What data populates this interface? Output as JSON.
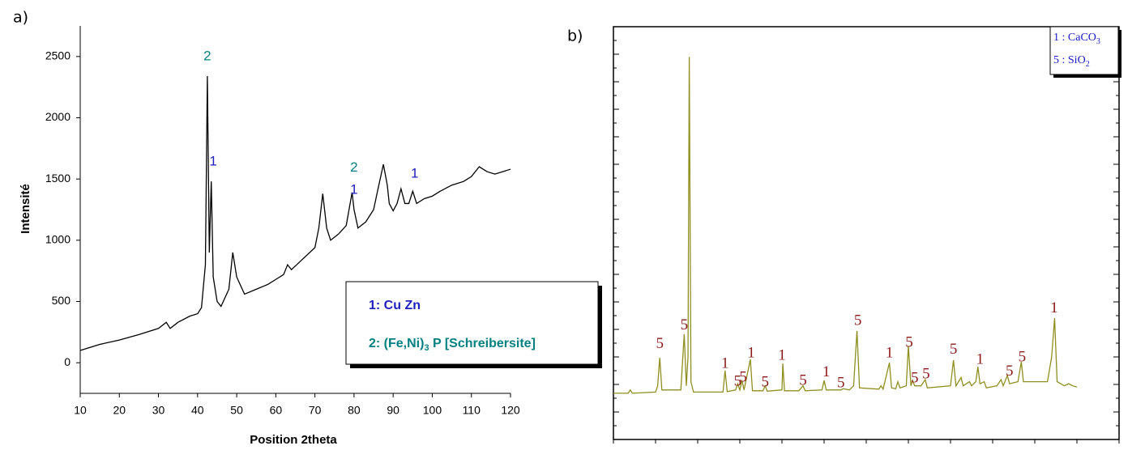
{
  "chart_data": [
    {
      "type": "line",
      "panel_label": "a)",
      "xlabel": "Position 2theta",
      "ylabel": "Intensité",
      "xlim": [
        10,
        120
      ],
      "ylim": [
        -250,
        2750
      ],
      "xticks": [
        10,
        20,
        30,
        40,
        50,
        60,
        70,
        80,
        90,
        100,
        110,
        120
      ],
      "yticks": [
        0,
        500,
        1000,
        1500,
        2000,
        2500
      ],
      "x": [
        10,
        15,
        20,
        25,
        30,
        32,
        33,
        35,
        38,
        40,
        41,
        42,
        42.5,
        43,
        43.5,
        44,
        45,
        46,
        48,
        49,
        50,
        52,
        55,
        58,
        60,
        62,
        63,
        64,
        66,
        68,
        70,
        71,
        72,
        73,
        74,
        76,
        78,
        79,
        79.5,
        80,
        81,
        83,
        85,
        86,
        87.5,
        88.5,
        89,
        90,
        91,
        92,
        93,
        94,
        95,
        96,
        98,
        100,
        102,
        105,
        108,
        110,
        112,
        114,
        116,
        118,
        120
      ],
      "series": [
        {
          "color": "#000000",
          "values": [
            100,
            150,
            185,
            230,
            280,
            330,
            280,
            330,
            380,
            400,
            450,
            800,
            2340,
            900,
            1480,
            700,
            500,
            460,
            600,
            900,
            700,
            560,
            600,
            640,
            680,
            720,
            800,
            760,
            820,
            880,
            940,
            1100,
            1380,
            1100,
            1000,
            1050,
            1120,
            1300,
            1390,
            1250,
            1100,
            1150,
            1250,
            1400,
            1620,
            1450,
            1300,
            1240,
            1300,
            1420,
            1300,
            1300,
            1400,
            1300,
            1340,
            1360,
            1400,
            1450,
            1480,
            1520,
            1600,
            1560,
            1540,
            1560,
            1580
          ]
        }
      ],
      "annotations": [
        {
          "text": "2",
          "x": 42.5,
          "y": 2500,
          "color": "#008080"
        },
        {
          "text": "1",
          "x": 44,
          "y": 1640,
          "color": "#1f1fbf"
        },
        {
          "text": "2",
          "x": 80,
          "y": 1590,
          "color": "#008080"
        },
        {
          "text": "1",
          "x": 80,
          "y": 1410,
          "color": "#1f1fbf"
        },
        {
          "text": "1",
          "x": 95.5,
          "y": 1540,
          "color": "#1f1fbf"
        }
      ],
      "legend": [
        {
          "color": "#1f1fbf",
          "parts": [
            {
              "text": "1: Cu Zn"
            }
          ]
        },
        {
          "color": "#008080",
          "parts": [
            {
              "text": "2: (Fe,Ni)"
            },
            {
              "sub": "3"
            },
            {
              "text": " P [Schreibersite]"
            }
          ]
        }
      ]
    },
    {
      "type": "line",
      "panel_label": "b)",
      "xlim": [
        10,
        130
      ],
      "ylim": [
        0,
        100
      ],
      "xticks": [
        10,
        20,
        30,
        40,
        50,
        60,
        70,
        80,
        90,
        100,
        110,
        120,
        130
      ],
      "x": [
        10,
        13.5,
        14,
        14.5,
        20,
        20.5,
        21,
        21.5,
        26,
        26.8,
        27.3,
        27.7,
        28,
        28.4,
        29,
        36,
        36.5,
        37,
        39,
        39.5,
        40,
        40.5,
        41,
        42.5,
        43,
        45.5,
        46,
        46.5,
        50,
        50.2,
        50.6,
        54,
        55,
        55.5,
        59.5,
        60,
        60.5,
        64,
        64.5,
        66,
        67,
        67.8,
        68.4,
        73,
        73.5,
        74,
        75.5,
        76,
        77,
        77.5,
        78,
        79.5,
        80,
        80.6,
        81,
        81.5,
        83,
        84,
        84.5,
        90,
        90.7,
        91.3,
        92.5,
        93,
        94.5,
        95,
        96,
        96.5,
        97,
        98,
        98.5,
        101,
        102,
        102.5,
        103.5,
        104,
        106,
        106.8,
        107.3,
        113,
        114,
        114.7,
        115.3,
        117,
        118,
        119,
        120
      ],
      "series": [
        {
          "color": "#8f8f1f",
          "values": [
            11.2,
            11.2,
            12,
            11.2,
            11.5,
            13,
            19.8,
            12,
            12,
            25.5,
            13,
            20,
            92.7,
            14,
            11.5,
            11.5,
            16.7,
            11.6,
            12,
            13.5,
            12,
            14.3,
            12,
            19.4,
            11.8,
            11.8,
            13,
            11.7,
            12,
            18.4,
            11.8,
            11.8,
            13,
            11.8,
            12,
            14.3,
            12,
            12,
            12.3,
            12,
            13,
            26.3,
            12.5,
            12.2,
            13,
            12.2,
            18.6,
            12.5,
            12.3,
            14,
            12.5,
            13,
            22.7,
            13,
            14.3,
            13,
            13,
            14.5,
            12.5,
            13,
            19.2,
            13,
            15,
            13,
            14,
            13,
            14,
            17.6,
            13.5,
            14,
            12.5,
            13,
            14.5,
            13,
            15.5,
            13.5,
            14,
            18.8,
            14,
            14,
            20,
            29.4,
            14,
            13,
            13.5,
            13,
            12.7
          ]
        }
      ],
      "annotations": [
        {
          "text": "5",
          "x": 21,
          "y": 23,
          "color": "#8b1a1a"
        },
        {
          "text": "5",
          "x": 26.8,
          "y": 27.5,
          "color": "#8b1a1a"
        },
        {
          "text": "1",
          "x": 36.5,
          "y": 18.2,
          "color": "#8b1a1a"
        },
        {
          "text": "5",
          "x": 39.5,
          "y": 13.9,
          "color": "#8b1a1a"
        },
        {
          "text": "5",
          "x": 40.8,
          "y": 14.9,
          "color": "#8b1a1a"
        },
        {
          "text": "1",
          "x": 42.7,
          "y": 20.8,
          "color": "#8b1a1a"
        },
        {
          "text": "5",
          "x": 46,
          "y": 13.7,
          "color": "#8b1a1a"
        },
        {
          "text": "1",
          "x": 50,
          "y": 20.2,
          "color": "#8b1a1a"
        },
        {
          "text": "5",
          "x": 55,
          "y": 14.1,
          "color": "#8b1a1a"
        },
        {
          "text": "1",
          "x": 60.5,
          "y": 16.1,
          "color": "#8b1a1a"
        },
        {
          "text": "5",
          "x": 64,
          "y": 13.5,
          "color": "#8b1a1a"
        },
        {
          "text": "5",
          "x": 68,
          "y": 28.6,
          "color": "#8b1a1a"
        },
        {
          "text": "1",
          "x": 75.5,
          "y": 20.8,
          "color": "#8b1a1a"
        },
        {
          "text": "5",
          "x": 80.2,
          "y": 23.3,
          "color": "#8b1a1a"
        },
        {
          "text": "5",
          "x": 81.5,
          "y": 14.7,
          "color": "#8b1a1a"
        },
        {
          "text": "5",
          "x": 84.2,
          "y": 15.7,
          "color": "#8b1a1a"
        },
        {
          "text": "5",
          "x": 90.7,
          "y": 21.6,
          "color": "#8b1a1a"
        },
        {
          "text": "1",
          "x": 97,
          "y": 19.2,
          "color": "#8b1a1a"
        },
        {
          "text": "5",
          "x": 104,
          "y": 16.3,
          "color": "#8b1a1a"
        },
        {
          "text": "5",
          "x": 107,
          "y": 19.8,
          "color": "#8b1a1a"
        },
        {
          "text": "1",
          "x": 114.6,
          "y": 31.6,
          "color": "#8b1a1a"
        }
      ],
      "legend": [
        {
          "color": "#1a1acc",
          "parts": [
            {
              "text": "1 : CaCO"
            },
            {
              "sub": "3"
            }
          ]
        },
        {
          "color": "#1a1acc",
          "parts": [
            {
              "text": "5 :  SiO"
            },
            {
              "sub": "2"
            }
          ]
        }
      ]
    }
  ]
}
